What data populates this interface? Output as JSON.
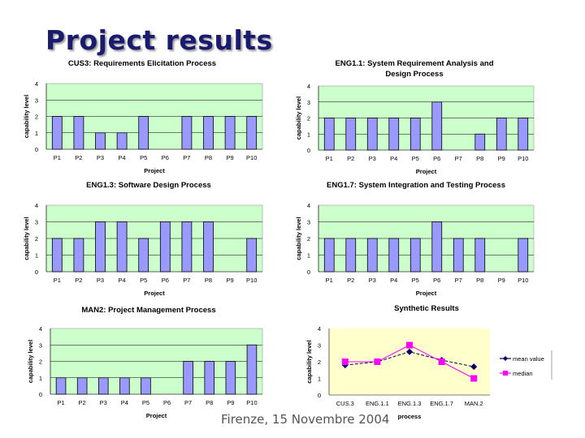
{
  "slide": {
    "title": "Project results",
    "footer": "Firenze, 15 Novembre 2004"
  },
  "chart_data": [
    {
      "type": "bar",
      "title": "CUS3: Requirements Elicitation Process",
      "xlabel": "Project",
      "ylabel": "capability level",
      "ylim": [
        0,
        4
      ],
      "yticks": [
        0,
        1,
        2,
        3,
        4
      ],
      "grid": true,
      "plot_bg": "#ccffcc",
      "bar_color": "#9999ff",
      "categories": [
        "P1",
        "P2",
        "P3",
        "P4",
        "P5",
        "P6",
        "P7",
        "P8",
        "P9",
        "P10"
      ],
      "values": [
        2,
        2,
        1,
        1,
        2,
        null,
        2,
        2,
        2,
        2
      ]
    },
    {
      "type": "bar",
      "title": "ENG1.1: System Requirement Analysis and Design Process",
      "xlabel": "Project",
      "ylabel": "capability level",
      "ylim": [
        0,
        4
      ],
      "yticks": [
        0,
        1,
        2,
        3,
        4
      ],
      "grid": true,
      "plot_bg": "#ccffcc",
      "bar_color": "#9999ff",
      "categories": [
        "P1",
        "P2",
        "P3",
        "P4",
        "P5",
        "P6",
        "P7",
        "P8",
        "P9",
        "P10"
      ],
      "values": [
        2,
        2,
        2,
        2,
        2,
        3,
        null,
        1,
        2,
        2
      ]
    },
    {
      "type": "bar",
      "title": "ENG1.3: Software Design Process",
      "xlabel": "Project",
      "ylabel": "capability level",
      "ylim": [
        0,
        4
      ],
      "yticks": [
        0,
        1,
        2,
        3,
        4
      ],
      "grid": true,
      "plot_bg": "#ccffcc",
      "bar_color": "#9999ff",
      "categories": [
        "P1",
        "P2",
        "P3",
        "P4",
        "P5",
        "P6",
        "P7",
        "P8",
        "P9",
        "P10"
      ],
      "values": [
        2,
        2,
        3,
        3,
        2,
        3,
        3,
        3,
        null,
        2
      ]
    },
    {
      "type": "bar",
      "title": "ENG1.7: System Integration and Testing Process",
      "xlabel": "Project",
      "ylabel": "capability level",
      "ylim": [
        0,
        4
      ],
      "yticks": [
        0,
        1,
        2,
        3,
        4
      ],
      "grid": true,
      "plot_bg": "#ccffcc",
      "bar_color": "#9999ff",
      "categories": [
        "P1",
        "P2",
        "P3",
        "P4",
        "P5",
        "P6",
        "P7",
        "P8",
        "P9",
        "P10"
      ],
      "values": [
        2,
        2,
        2,
        2,
        2,
        3,
        2,
        2,
        null,
        2
      ]
    },
    {
      "type": "bar",
      "title": "MAN2: Project Management Process",
      "xlabel": "Project",
      "ylabel": "capability level",
      "ylim": [
        0,
        4
      ],
      "yticks": [
        0,
        1,
        2,
        3,
        4
      ],
      "grid": true,
      "plot_bg": "#ccffcc",
      "bar_color": "#9999ff",
      "categories": [
        "P1",
        "P2",
        "P3",
        "P4",
        "P5",
        "P6",
        "P7",
        "P8",
        "P9",
        "P10"
      ],
      "values": [
        1,
        1,
        1,
        1,
        1,
        null,
        2,
        2,
        2,
        3
      ]
    },
    {
      "type": "line",
      "title": "Synthetic Results",
      "xlabel": "process",
      "ylabel": "capability level",
      "ylim": [
        0,
        4
      ],
      "yticks": [
        0,
        1,
        2,
        3,
        4
      ],
      "grid": false,
      "plot_bg": "#ffffcc",
      "legend": "right",
      "categories": [
        "CUS.3",
        "ENG.1.1",
        "ENG.1.3",
        "ENG.1.7",
        "MAN.2"
      ],
      "series": [
        {
          "name": "mean value",
          "values": [
            1.8,
            2.0,
            2.6,
            2.1,
            1.7
          ],
          "color": "#000066",
          "marker": "diamond"
        },
        {
          "name": "median",
          "values": [
            2,
            2,
            3,
            2,
            1
          ],
          "color": "#ff00ff",
          "marker": "square"
        }
      ]
    }
  ]
}
